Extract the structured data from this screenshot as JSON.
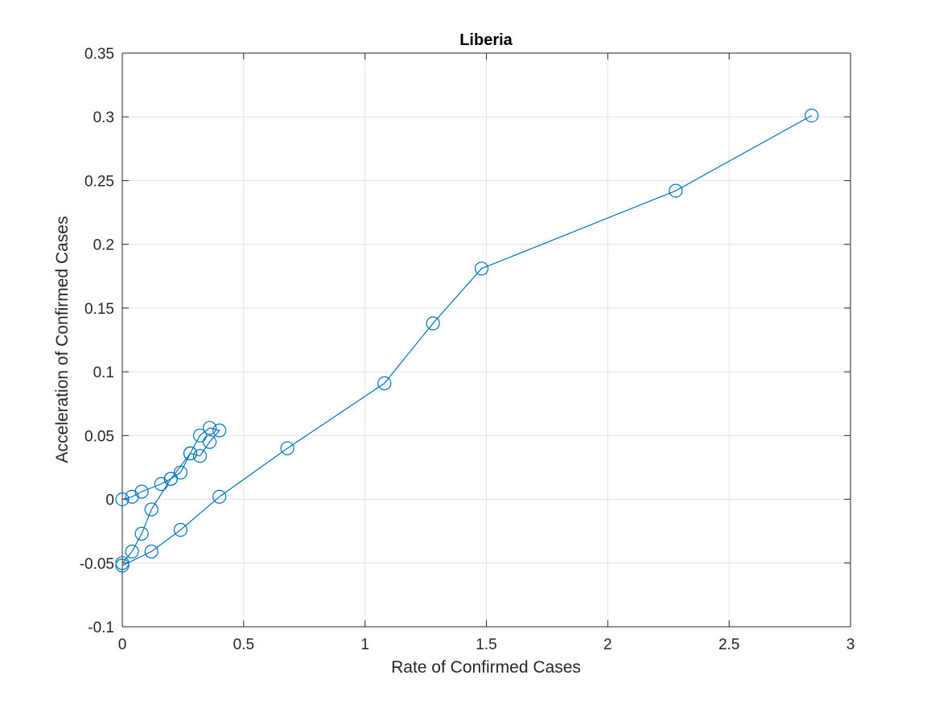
{
  "chart_data": {
    "type": "line",
    "title": "Liberia",
    "xlabel": "Rate of Confirmed Cases",
    "ylabel": "Acceleration of Confirmed Cases",
    "xlim": [
      0,
      3
    ],
    "ylim": [
      -0.1,
      0.35
    ],
    "xticks": [
      0,
      0.5,
      1,
      1.5,
      2,
      2.5,
      3
    ],
    "xtick_labels": [
      "0",
      "0.5",
      "1",
      "1.5",
      "2",
      "2.5",
      "3"
    ],
    "yticks": [
      -0.1,
      -0.05,
      0,
      0.05,
      0.1,
      0.15,
      0.2,
      0.25,
      0.3,
      0.35
    ],
    "ytick_labels": [
      "-0.1",
      "-0.05",
      "0",
      "0.05",
      "0.1",
      "0.15",
      "0.2",
      "0.25",
      "0.3",
      "0.35"
    ],
    "grid": true,
    "marker": "circle",
    "color": "#0072BD",
    "series": [
      {
        "points": [
          [
            0,
            0
          ],
          [
            0.04,
            0.002
          ],
          [
            0.08,
            0.006
          ],
          [
            0.16,
            0.012
          ],
          [
            0.2,
            0.016
          ],
          [
            0.24,
            0.021
          ],
          [
            0.28,
            0.036
          ],
          [
            0.32,
            0.05
          ],
          [
            0.36,
            0.056
          ],
          [
            0.4,
            0.054
          ],
          [
            0.36,
            0.045
          ],
          [
            0.32,
            0.034
          ],
          [
            0.28,
            0.036
          ],
          [
            0.2,
            0.016
          ],
          [
            0.12,
            -0.008
          ],
          [
            0.08,
            -0.027
          ],
          [
            0.04,
            -0.041
          ],
          [
            0,
            -0.05
          ],
          [
            0,
            -0.052
          ],
          [
            0.12,
            -0.041
          ],
          [
            0.24,
            -0.024
          ],
          [
            0.4,
            0.002
          ],
          [
            0.68,
            0.04
          ],
          [
            1.08,
            0.091
          ],
          [
            1.28,
            0.138
          ],
          [
            1.48,
            0.181
          ],
          [
            2.28,
            0.242
          ],
          [
            2.84,
            0.301
          ]
        ]
      }
    ]
  }
}
